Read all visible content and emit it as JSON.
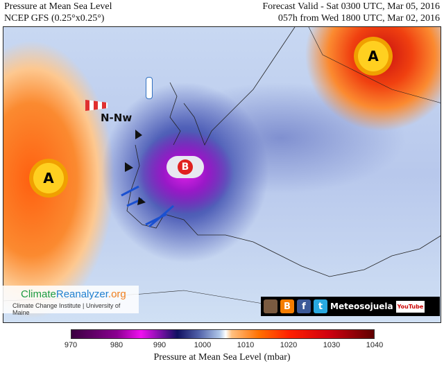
{
  "header": {
    "title": "Pressure at Mean Sea Level",
    "model": "NCEP GFS (0.25°x0.25°)",
    "valid": "Forecast Valid - Sat 0300 UTC, Mar 05, 2016",
    "run": "057h from Wed 1800 UTC, Mar 02, 2016"
  },
  "map": {
    "high_label": "A",
    "low_label": "B",
    "wind_label": "N-Nw"
  },
  "logo": {
    "climate": "Climate",
    "reanalyzer": "Reanalyzer",
    "org": ".org",
    "institution": "Climate Change Institute | University of Maine"
  },
  "social": {
    "name": "Meteosojuela",
    "youtube": "YouTube",
    "blogger": "B",
    "facebook": "f",
    "twitter": "t"
  },
  "colorbar": {
    "ticks": [
      "970",
      "980",
      "990",
      "1000",
      "1010",
      "1020",
      "1030",
      "1040"
    ],
    "title": "Pressure at Mean Sea Level (mbar)"
  },
  "colors": {
    "low": "#e020e8",
    "high": "#c81010"
  }
}
